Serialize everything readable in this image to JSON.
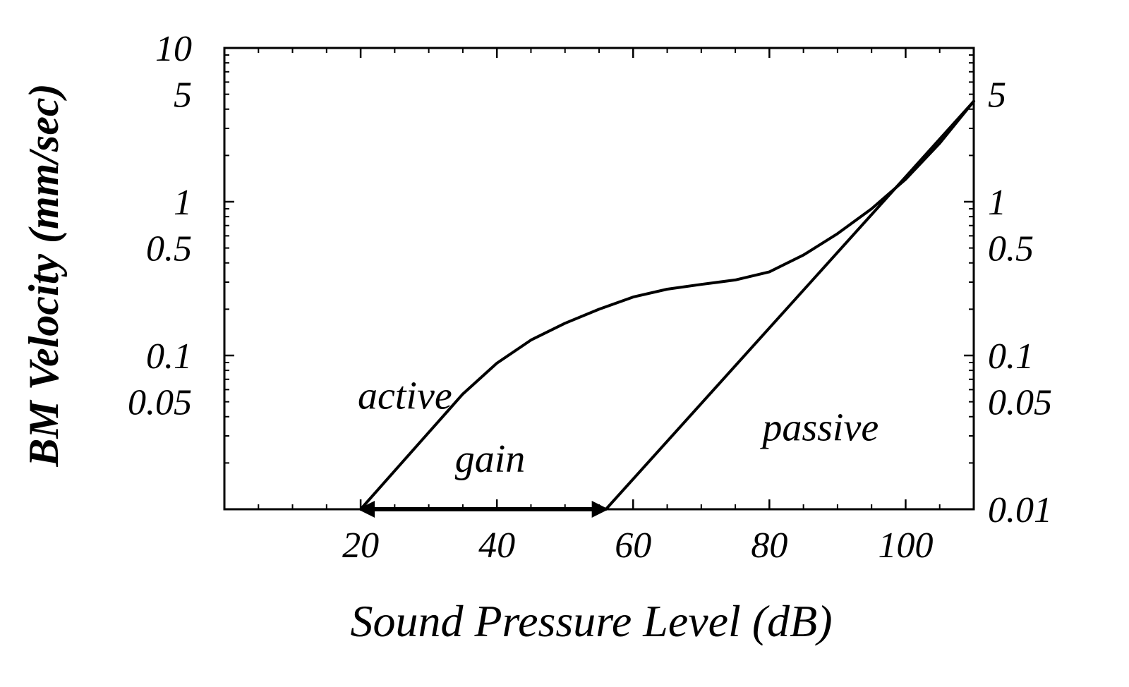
{
  "chart_data": {
    "type": "line",
    "xlabel": "Sound Pressure Level (dB)",
    "ylabel": "BM Velocity (mm/sec)",
    "xlim": [
      0,
      110
    ],
    "ylim": [
      0.01,
      10
    ],
    "yscale": "log",
    "x_ticks": [
      20,
      40,
      60,
      80,
      100
    ],
    "x_tick_labels": [
      "20",
      "40",
      "60",
      "80",
      "100"
    ],
    "y_ticks_left": [
      10,
      5,
      1,
      0.5,
      0.1,
      0.05
    ],
    "y_tick_labels_left": [
      "10",
      "5",
      "1",
      "0.5",
      "0.1",
      "0.05"
    ],
    "y_ticks_right": [
      5,
      1,
      0.5,
      0.1,
      0.05,
      0.01
    ],
    "y_tick_labels_right": [
      "5",
      "1",
      "0.5",
      "0.1",
      "0.05",
      "0.01"
    ],
    "series": [
      {
        "name": "active",
        "x": [
          20,
          25,
          30,
          35,
          40,
          45,
          50,
          55,
          60,
          65,
          70,
          75,
          80,
          85,
          90,
          95,
          100,
          105,
          110
        ],
        "y": [
          0.01,
          0.0178,
          0.0316,
          0.0562,
          0.0891,
          0.126,
          0.162,
          0.2,
          0.24,
          0.27,
          0.29,
          0.31,
          0.35,
          0.45,
          0.62,
          0.9,
          1.4,
          2.4,
          4.5
        ]
      },
      {
        "name": "passive",
        "x": [
          56,
          110
        ],
        "y": [
          0.01,
          4.5
        ]
      }
    ],
    "gain_arrow": {
      "x_start": 20,
      "x_end": 56,
      "y": 0.01,
      "label": "gain"
    },
    "annotations": [
      {
        "text": "active",
        "x": 26.5,
        "y": 0.045
      },
      {
        "text": "gain",
        "x": 39,
        "y": 0.0175
      },
      {
        "text": "passive",
        "x": 87.5,
        "y": 0.028
      }
    ],
    "grid": false,
    "legend": "none"
  }
}
